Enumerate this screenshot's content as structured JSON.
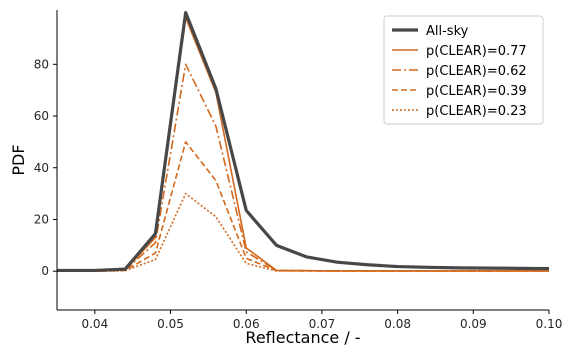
{
  "chart_data": {
    "type": "line",
    "title": "",
    "xlabel": "Reflectance / -",
    "ylabel": "PDF",
    "xlim": [
      0.035,
      0.1
    ],
    "ylim": [
      -15,
      101
    ],
    "x_ticks": [
      0.04,
      0.05,
      0.06,
      0.07,
      0.08,
      0.09,
      0.1
    ],
    "x_tick_labels": [
      "0.04",
      "0.05",
      "0.06",
      "0.07",
      "0.08",
      "0.09",
      "0.10"
    ],
    "y_ticks": [
      0,
      20,
      40,
      60,
      80
    ],
    "y_tick_labels": [
      "0",
      "20",
      "40",
      "60",
      "80"
    ],
    "grid": false,
    "legend_position": "top-right",
    "series": [
      {
        "name": "All-sky",
        "color": "#474747",
        "style": "solid-thick",
        "x": [
          0.035,
          0.04,
          0.044,
          0.048,
          0.052,
          0.056,
          0.06,
          0.064,
          0.068,
          0.072,
          0.076,
          0.08,
          0.084,
          0.088,
          0.092,
          0.096,
          0.1
        ],
        "y": [
          0.3,
          0.3,
          0.8,
          14.5,
          100,
          70.5,
          23.5,
          10,
          5.5,
          3.5,
          2.5,
          1.8,
          1.5,
          1.3,
          1.2,
          1.1,
          1.0
        ]
      },
      {
        "name": "p(CLEAR)=0.77",
        "color": "#d2691e",
        "style": "solid",
        "x": [
          0.035,
          0.04,
          0.044,
          0.048,
          0.052,
          0.056,
          0.06,
          0.064,
          0.068,
          0.072,
          0.08,
          0.09,
          0.1
        ],
        "y": [
          0,
          0,
          0.5,
          13,
          98,
          69,
          9,
          0.3,
          0.2,
          0.1,
          0.1,
          0.1,
          0.1
        ]
      },
      {
        "name": "p(CLEAR)=0.62",
        "color": "#d2691e",
        "style": "dashdot",
        "x": [
          0.035,
          0.04,
          0.044,
          0.048,
          0.052,
          0.056,
          0.06,
          0.064,
          0.068,
          0.072,
          0.08,
          0.09,
          0.1
        ],
        "y": [
          0,
          0,
          0.4,
          11,
          80,
          56,
          7.5,
          0.3,
          0.2,
          0.1,
          0.1,
          0.1,
          0.1
        ]
      },
      {
        "name": "p(CLEAR)=0.39",
        "color": "#d2691e",
        "style": "dashed",
        "x": [
          0.035,
          0.04,
          0.044,
          0.048,
          0.052,
          0.056,
          0.06,
          0.064,
          0.068,
          0.072,
          0.08,
          0.09,
          0.1
        ],
        "y": [
          0,
          0,
          0.3,
          7,
          50,
          35,
          5,
          0.2,
          0.1,
          0.1,
          0.1,
          0.1,
          0.1
        ]
      },
      {
        "name": "p(CLEAR)=0.23",
        "color": "#d2691e",
        "style": "dotted",
        "x": [
          0.035,
          0.04,
          0.044,
          0.048,
          0.052,
          0.056,
          0.06,
          0.064,
          0.068,
          0.072,
          0.08,
          0.09,
          0.1
        ],
        "y": [
          0,
          0,
          0.2,
          4.5,
          30,
          21,
          3,
          0.1,
          0.1,
          0.1,
          0.1,
          0.1,
          0.1
        ]
      }
    ]
  }
}
